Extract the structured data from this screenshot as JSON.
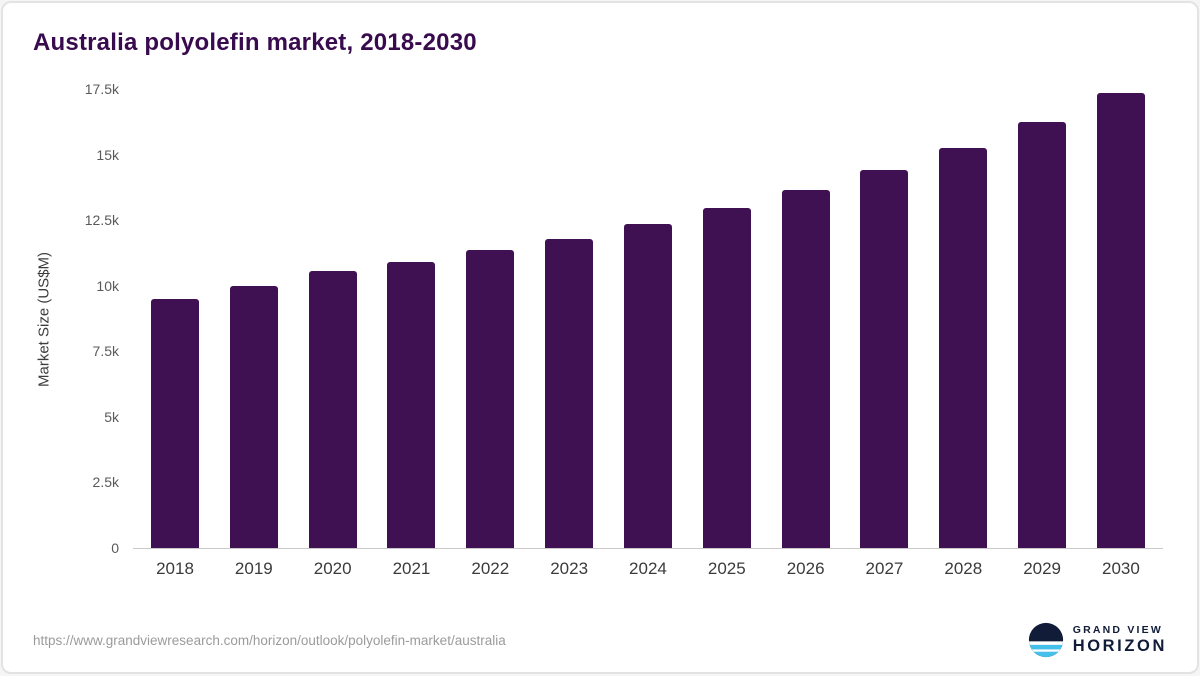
{
  "header": {
    "title": "Australia polyolefin market, 2018-2030"
  },
  "chart_data": {
    "type": "bar",
    "title": "Australia polyolefin market, 2018-2030",
    "categories": [
      "2018",
      "2019",
      "2020",
      "2021",
      "2022",
      "2023",
      "2024",
      "2025",
      "2026",
      "2027",
      "2028",
      "2029",
      "2030"
    ],
    "values": [
      9500,
      10000,
      10550,
      10900,
      11350,
      11800,
      12350,
      12950,
      13650,
      14400,
      15250,
      16250,
      17350
    ],
    "xlabel": "",
    "ylabel": "Market Size (US$M)",
    "ylim": [
      0,
      17500
    ],
    "yticks": [
      0,
      2500,
      5000,
      7500,
      10000,
      12500,
      15000,
      17500
    ],
    "ytick_labels": [
      "0",
      "2.5k",
      "5k",
      "7.5k",
      "10k",
      "12.5k",
      "15k",
      "17.5k"
    ],
    "bar_color": "#3f1152",
    "grid": false,
    "legend": false
  },
  "footer": {
    "source_url": "https://www.grandviewresearch.com/horizon/outlook/polyolefin-market/australia",
    "logo": {
      "line1": "GRAND VIEW",
      "line2": "HORIZON",
      "icon_dark_color": "#101c38",
      "icon_light_color": "#45c0ea"
    }
  }
}
